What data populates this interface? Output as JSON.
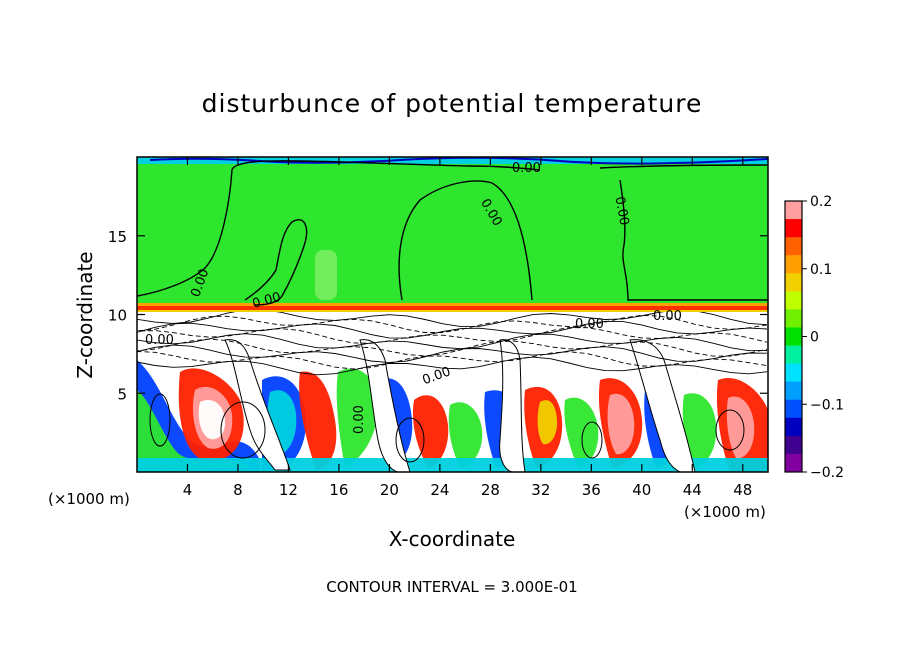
{
  "chart_data": {
    "type": "heatmap",
    "title": "disturbunce of potential temperature",
    "xlabel": "X-coordinate",
    "ylabel": "Z-coordinate",
    "x_unit": "(×1000 m)",
    "x_ticks": [
      4,
      8,
      12,
      16,
      20,
      24,
      28,
      32,
      36,
      40,
      44,
      48
    ],
    "y_ticks": [
      5,
      10,
      15
    ],
    "xlim": [
      0,
      50
    ],
    "ylim": [
      0,
      20
    ],
    "colorbar": {
      "ticks": [
        0.2,
        0.1,
        0,
        -0.1,
        -0.2
      ],
      "tick_labels": [
        "0.2",
        "0.1",
        "0",
        "−0.1",
        "−0.2"
      ],
      "range": [
        -0.2,
        0.2
      ],
      "colors": [
        "#FFA0A0",
        "#FF0000",
        "#FF6000",
        "#FFA000",
        "#F0D000",
        "#C0FF00",
        "#70F000",
        "#00E000",
        "#00F0A0",
        "#00E0FF",
        "#00A0FF",
        "#0050FF",
        "#0000C0",
        "#400090",
        "#8000A0"
      ]
    },
    "contour_labels": [
      "0.00",
      "0.00",
      "0.00",
      "0.00",
      "0.00",
      "0.00",
      "0.00",
      "0.00",
      "0.00",
      "0.00"
    ],
    "interval_note": "CONTOUR INTERVAL = 3.000E-01"
  },
  "colors": {
    "upper_field": "#2EE62E",
    "frame": "#000000"
  }
}
